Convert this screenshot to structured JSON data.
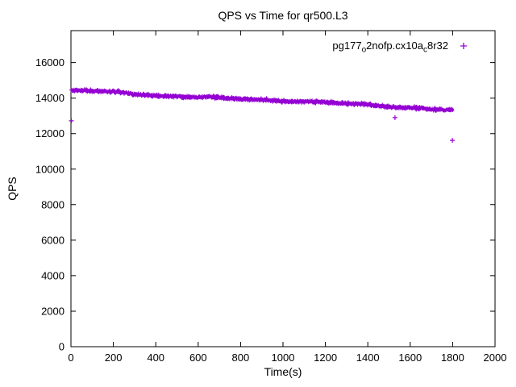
{
  "title": "QPS vs Time for qr500.L3",
  "axes": {
    "x_label": "Time(s)",
    "y_label": "QPS"
  },
  "legend": {
    "parts": [
      "pg177",
      "o",
      "2nofp.cx10a",
      "c",
      "8r32"
    ],
    "marker": "plus",
    "position": "top-right-inside"
  },
  "chart_data": {
    "type": "scatter",
    "title": "QPS vs Time for qr500.L3",
    "xlabel": "Time(s)",
    "ylabel": "QPS",
    "xlim": [
      0,
      2000
    ],
    "ylim": [
      0,
      17800
    ],
    "x_ticks": [
      0,
      200,
      400,
      600,
      800,
      1000,
      1200,
      1400,
      1600,
      1800,
      2000
    ],
    "y_ticks": [
      0,
      2000,
      4000,
      6000,
      8000,
      10000,
      12000,
      14000,
      16000
    ],
    "grid": false,
    "legend_position": "top-right-inside",
    "seed": 1337,
    "series": [
      {
        "name": "pg177_o2nofp.cx10a_c8r32",
        "marker": "plus",
        "color": "#9400d3",
        "x_range": [
          0,
          1800
        ],
        "point_count": 1500,
        "trend_keyframes": [
          [
            0,
            14450
          ],
          [
            100,
            14400
          ],
          [
            200,
            14330
          ],
          [
            400,
            14160
          ],
          [
            600,
            14060
          ],
          [
            800,
            13960
          ],
          [
            1000,
            13860
          ],
          [
            1200,
            13760
          ],
          [
            1400,
            13620
          ],
          [
            1600,
            13460
          ],
          [
            1800,
            13320
          ]
        ],
        "noise_band": 90,
        "outliers": [
          [
            2,
            12720
          ],
          [
            1528,
            12900
          ],
          [
            1799,
            11620
          ]
        ]
      }
    ]
  }
}
